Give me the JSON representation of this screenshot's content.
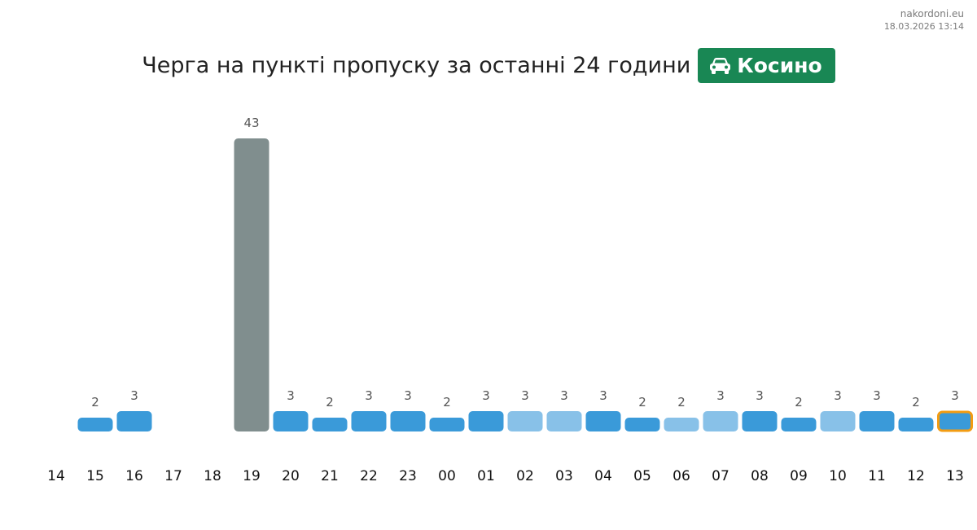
{
  "header": {
    "site": "nakordoni.eu",
    "timestamp": "18.03.2026 13:14",
    "title": "Черга на пункті пропуску за останні 24 години",
    "checkpoint": "Косино",
    "checkpoint_icon": "car-icon",
    "checkpoint_color": "#198754"
  },
  "chart_data": {
    "type": "bar",
    "title": "Черга на пункті пропуску за останні 24 години",
    "xlabel": "",
    "ylabel": "",
    "ylim": [
      0,
      43
    ],
    "grid": false,
    "categories": [
      "14",
      "15",
      "16",
      "17",
      "18",
      "19",
      "20",
      "21",
      "22",
      "23",
      "00",
      "01",
      "02",
      "03",
      "04",
      "05",
      "06",
      "07",
      "08",
      "09",
      "10",
      "11",
      "12",
      "13"
    ],
    "values": [
      null,
      2,
      3,
      null,
      null,
      43,
      3,
      2,
      3,
      3,
      2,
      3,
      3,
      3,
      3,
      2,
      2,
      3,
      3,
      2,
      3,
      3,
      2,
      3
    ],
    "bar_colors": [
      "#3a9ad9",
      "#3a9ad9",
      "#3a9ad9",
      "#3a9ad9",
      "#3a9ad9",
      "#808e8e",
      "#3a9ad9",
      "#3a9ad9",
      "#3a9ad9",
      "#3a9ad9",
      "#3a9ad9",
      "#3a9ad9",
      "#88c1e8",
      "#88c1e8",
      "#3a9ad9",
      "#3a9ad9",
      "#88c1e8",
      "#88c1e8",
      "#3a9ad9",
      "#3a9ad9",
      "#88c1e8",
      "#3a9ad9",
      "#3a9ad9",
      "#3a9ad9"
    ],
    "highlight_index": 23,
    "highlight_color": "#f39c12"
  }
}
